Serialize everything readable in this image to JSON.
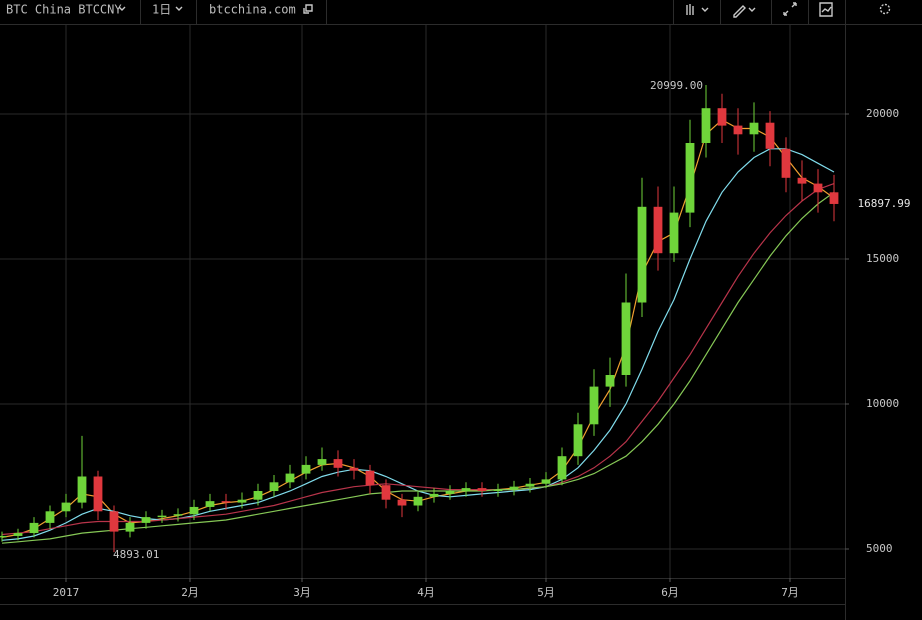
{
  "toolbar": {
    "symbol": "BTC China BTCCNY",
    "interval": "1日",
    "source": "btcchina.com"
  },
  "chart_data": {
    "type": "candlestick",
    "x": [
      -16,
      -12,
      -8,
      -4,
      0,
      4,
      8,
      12,
      16,
      20,
      24,
      28,
      32,
      36,
      40,
      44,
      48,
      52,
      56,
      60,
      64,
      68,
      72,
      76,
      80,
      84,
      88,
      92,
      96,
      100,
      104,
      108,
      112,
      116,
      120,
      124,
      128,
      132,
      136,
      140,
      144,
      148,
      152,
      156,
      160,
      164,
      168,
      172,
      176,
      180,
      184,
      188,
      192
    ],
    "open": [
      5400,
      5450,
      5550,
      5900,
      6300,
      6600,
      7500,
      6300,
      5600,
      5900,
      6100,
      6150,
      6200,
      6450,
      6650,
      6600,
      6700,
      7000,
      7300,
      7600,
      7900,
      8100,
      7800,
      7700,
      7200,
      6700,
      6500,
      6800,
      6900,
      7000,
      7100,
      7000,
      7050,
      7150,
      7250,
      7400,
      8200,
      9300,
      10600,
      11000,
      13500,
      16800,
      15200,
      16600,
      19000,
      20200,
      19600,
      19300,
      19700,
      18800,
      17800,
      17600,
      17300
    ],
    "high": [
      5600,
      5700,
      6100,
      6500,
      6900,
      8900,
      7700,
      6500,
      6100,
      6300,
      6350,
      6400,
      6700,
      6900,
      6900,
      6950,
      7250,
      7550,
      7900,
      8200,
      8500,
      8400,
      8100,
      7900,
      7400,
      6900,
      7000,
      7100,
      7200,
      7300,
      7300,
      7250,
      7350,
      7450,
      7650,
      8500,
      9700,
      11200,
      11600,
      14500,
      17800,
      17500,
      17500,
      19800,
      20999,
      20700,
      20200,
      20400,
      20100,
      19200,
      18400,
      18100,
      17900
    ],
    "low": [
      5250,
      5300,
      5400,
      5700,
      6100,
      6400,
      6000,
      4893.01,
      5400,
      5700,
      5900,
      5950,
      6000,
      6300,
      6350,
      6400,
      6500,
      6800,
      7100,
      7400,
      7700,
      7500,
      7400,
      6900,
      6400,
      6100,
      6300,
      6600,
      6700,
      6800,
      6800,
      6800,
      6850,
      6950,
      7100,
      7200,
      7900,
      8900,
      9900,
      10600,
      13000,
      14600,
      14900,
      16100,
      18500,
      19000,
      18600,
      18700,
      18200,
      17300,
      17000,
      16600,
      16300
    ],
    "close": [
      5450,
      5550,
      5900,
      6300,
      6600,
      7500,
      6300,
      5600,
      5900,
      6100,
      6150,
      6200,
      6450,
      6650,
      6600,
      6700,
      7000,
      7300,
      7600,
      7900,
      8100,
      7800,
      7700,
      7200,
      6700,
      6500,
      6800,
      6900,
      7000,
      7100,
      7000,
      7050,
      7150,
      7250,
      7400,
      8200,
      9300,
      10600,
      11000,
      13500,
      16800,
      15200,
      16600,
      19000,
      20200,
      19600,
      19300,
      19700,
      18800,
      17800,
      17600,
      17300,
      16897.99
    ],
    "up_color": "#6fd43a",
    "down_color": "#e0383e",
    "series": [
      {
        "color": "#f0a030",
        "values": [
          5400,
          5500,
          5700,
          6050,
          6400,
          6900,
          6800,
          6200,
          5900,
          5950,
          6050,
          6150,
          6300,
          6500,
          6600,
          6650,
          6800,
          7050,
          7350,
          7650,
          7900,
          7950,
          7800,
          7500,
          7000,
          6700,
          6650,
          6800,
          6900,
          7000,
          7030,
          7050,
          7100,
          7200,
          7300,
          7700,
          8500,
          9600,
          10500,
          12000,
          14500,
          15600,
          15900,
          17500,
          19300,
          19800,
          19500,
          19500,
          19200,
          18500,
          17800,
          17500,
          17100
        ]
      },
      {
        "color": "#80dcec",
        "values": [
          5300,
          5350,
          5450,
          5650,
          5900,
          6200,
          6400,
          6300,
          6150,
          6050,
          6000,
          6050,
          6150,
          6300,
          6400,
          6500,
          6600,
          6800,
          7000,
          7250,
          7500,
          7650,
          7750,
          7700,
          7500,
          7250,
          7000,
          6850,
          6800,
          6850,
          6900,
          6950,
          7000,
          7050,
          7150,
          7400,
          7800,
          8400,
          9100,
          10000,
          11200,
          12500,
          13600,
          15000,
          16300,
          17300,
          18000,
          18500,
          18800,
          18800,
          18600,
          18300,
          18000
        ]
      },
      {
        "color": "#b8344a",
        "values": [
          5500,
          5550,
          5600,
          5700,
          5800,
          5900,
          5950,
          5950,
          5950,
          5950,
          6000,
          6050,
          6100,
          6150,
          6200,
          6300,
          6400,
          6500,
          6650,
          6800,
          6950,
          7050,
          7150,
          7200,
          7250,
          7200,
          7150,
          7100,
          7050,
          7050,
          7050,
          7050,
          7050,
          7100,
          7150,
          7300,
          7500,
          7800,
          8200,
          8700,
          9400,
          10100,
          10900,
          11700,
          12600,
          13500,
          14400,
          15200,
          15900,
          16500,
          17000,
          17400,
          17600
        ]
      },
      {
        "color": "#86c856",
        "values": [
          5200,
          5250,
          5300,
          5350,
          5450,
          5550,
          5600,
          5650,
          5700,
          5750,
          5800,
          5850,
          5900,
          5950,
          6000,
          6100,
          6200,
          6300,
          6400,
          6500,
          6600,
          6700,
          6800,
          6900,
          6950,
          7000,
          7000,
          7000,
          7000,
          7000,
          7000,
          7050,
          7050,
          7100,
          7150,
          7250,
          7400,
          7600,
          7900,
          8200,
          8700,
          9300,
          10000,
          10800,
          11700,
          12600,
          13500,
          14300,
          15100,
          15800,
          16400,
          16900,
          17300
        ]
      }
    ],
    "high_label": "20999.00",
    "low_label": "4893.01",
    "last_price_label": "16897.99",
    "xlim": [
      -16.5,
      194.75
    ],
    "xticks": [
      {
        "value": 0,
        "label": "2017"
      },
      {
        "value": 31,
        "label": "2月"
      },
      {
        "value": 59,
        "label": "3月"
      },
      {
        "value": 90,
        "label": "4月"
      },
      {
        "value": 120,
        "label": "5月"
      },
      {
        "value": 151,
        "label": "6月"
      },
      {
        "value": 181,
        "label": "7月"
      }
    ],
    "ylim": [
      4000,
      23069
    ],
    "yticks": [
      5000,
      10000,
      15000,
      20000
    ],
    "grid": true
  }
}
